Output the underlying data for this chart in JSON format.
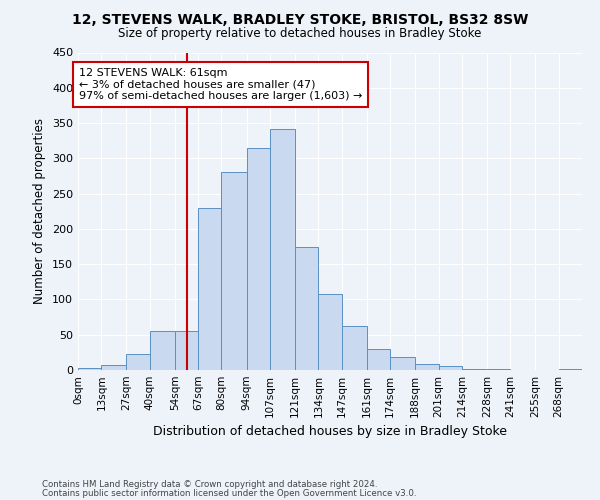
{
  "title": "12, STEVENS WALK, BRADLEY STOKE, BRISTOL, BS32 8SW",
  "subtitle": "Size of property relative to detached houses in Bradley Stoke",
  "xlabel": "Distribution of detached houses by size in Bradley Stoke",
  "ylabel": "Number of detached properties",
  "bar_labels": [
    "0sqm",
    "13sqm",
    "27sqm",
    "40sqm",
    "54sqm",
    "67sqm",
    "80sqm",
    "94sqm",
    "107sqm",
    "121sqm",
    "134sqm",
    "147sqm",
    "161sqm",
    "174sqm",
    "188sqm",
    "201sqm",
    "214sqm",
    "228sqm",
    "241sqm",
    "255sqm",
    "268sqm"
  ],
  "bar_values": [
    3,
    7,
    22,
    55,
    55,
    230,
    280,
    315,
    342,
    175,
    108,
    62,
    30,
    19,
    8,
    5,
    1,
    1,
    0,
    0,
    2
  ],
  "bar_color": "#c9d9f0",
  "bar_edge_color": "#5a8fc3",
  "vline_x": 61,
  "vline_color": "#cc0000",
  "ylim": [
    0,
    450
  ],
  "yticks": [
    0,
    50,
    100,
    150,
    200,
    250,
    300,
    350,
    400,
    450
  ],
  "annotation_title": "12 STEVENS WALK: 61sqm",
  "annotation_line1": "← 3% of detached houses are smaller (47)",
  "annotation_line2": "97% of semi-detached houses are larger (1,603) →",
  "annotation_box_color": "#ffffff",
  "annotation_box_edge": "#cc0000",
  "footer1": "Contains HM Land Registry data © Crown copyright and database right 2024.",
  "footer2": "Contains public sector information licensed under the Open Government Licence v3.0.",
  "bg_color": "#eef2f9",
  "grid_color": "#ffffff",
  "bin_edges": [
    0,
    13,
    27,
    40,
    54,
    67,
    80,
    94,
    107,
    121,
    134,
    147,
    161,
    174,
    188,
    201,
    214,
    228,
    241,
    255,
    268,
    281
  ]
}
